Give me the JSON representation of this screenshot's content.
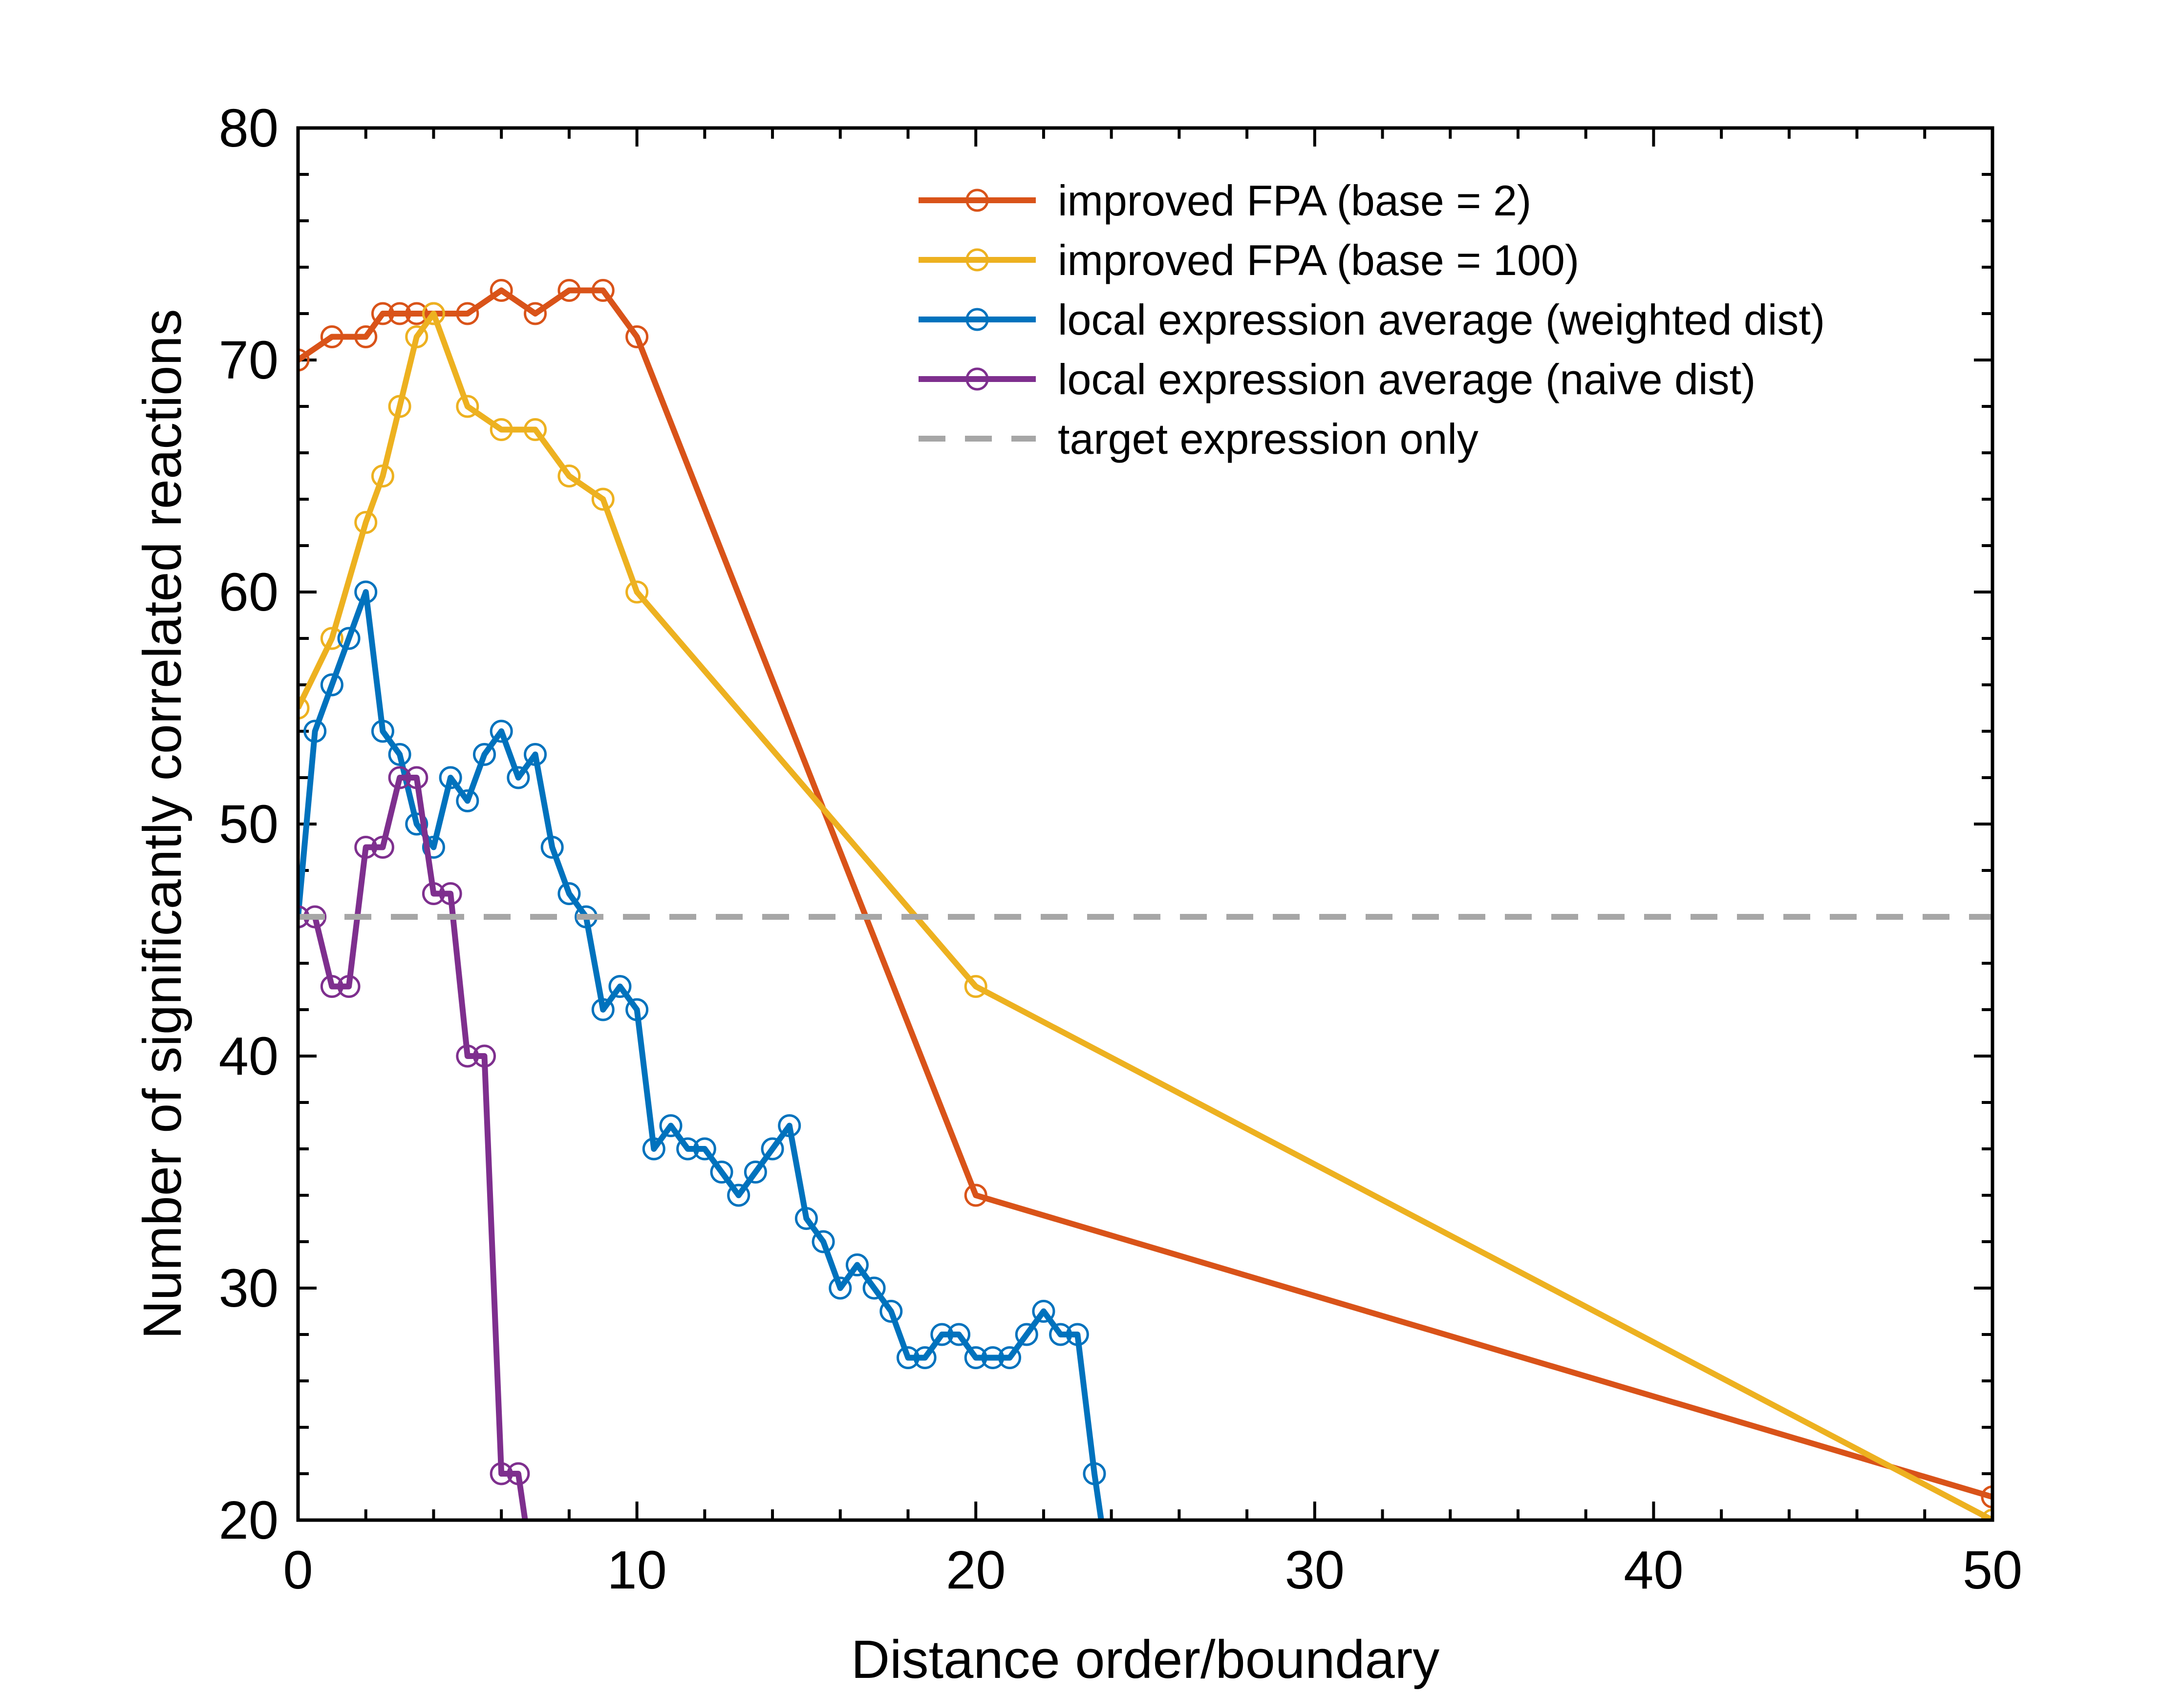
{
  "chart_data": {
    "type": "line",
    "xlabel": "Distance order/boundary",
    "ylabel": "Number of significantly correlated reactions",
    "xlim": [
      0,
      50
    ],
    "ylim": [
      20,
      80
    ],
    "x_scale": "piecewise-linear: 0-20 spans 10 units per major tick, 20-50 compressed",
    "xticks": [
      0,
      10,
      20,
      30,
      40,
      50
    ],
    "xtick_labels": [
      "0",
      "10",
      "20",
      "30",
      "40",
      "50"
    ],
    "yticks": [
      20,
      30,
      40,
      50,
      60,
      70,
      80
    ],
    "ytick_labels": [
      "20",
      "30",
      "40",
      "50",
      "60",
      "70",
      "80"
    ],
    "grid": false,
    "legend_position": "top-right",
    "series": [
      {
        "name": "improved FPA (base = 2)",
        "color": "#D95319",
        "marker": "circle",
        "x": [
          0,
          1,
          2,
          2.5,
          3,
          3.5,
          4,
          5,
          6,
          7,
          8,
          9,
          10,
          20,
          50
        ],
        "y": [
          70,
          71,
          71,
          72,
          72,
          72,
          72,
          72,
          73,
          72,
          73,
          73,
          71,
          34,
          21
        ]
      },
      {
        "name": "improved FPA (base = 100)",
        "color": "#EDB120",
        "marker": "circle",
        "x": [
          0,
          1,
          2,
          2.5,
          3,
          3.5,
          4,
          5,
          6,
          7,
          8,
          9,
          10,
          20,
          50
        ],
        "y": [
          55,
          58,
          63,
          65,
          68,
          71,
          72,
          68,
          67,
          67,
          65,
          64,
          60,
          43,
          20
        ]
      },
      {
        "name": "local expression average (weighted dist)",
        "color": "#0072BD",
        "marker": "circle",
        "x": [
          0,
          0.5,
          1,
          1.5,
          2,
          2.5,
          3,
          3.5,
          4,
          4.5,
          5,
          5.5,
          6,
          6.5,
          7,
          7.5,
          8,
          8.5,
          9,
          9.5,
          10,
          10.5,
          11,
          11.5,
          12,
          12.5,
          13,
          13.5,
          14,
          14.5,
          15,
          15.5,
          16,
          16.5,
          17,
          17.5,
          18,
          18.5,
          19,
          19.5,
          20,
          20.5,
          21,
          21.5,
          22,
          22.5,
          23,
          23.5,
          23.7
        ],
        "y": [
          46,
          54,
          56,
          58,
          60,
          54,
          53,
          50,
          49,
          52,
          51,
          53,
          54,
          52,
          53,
          49,
          47,
          46,
          42,
          43,
          42,
          36,
          37,
          36,
          36,
          35,
          34,
          35,
          36,
          37,
          33,
          32,
          30,
          31,
          30,
          29,
          27,
          27,
          28,
          28,
          27,
          27,
          27,
          28,
          29,
          28,
          28,
          22,
          20
        ]
      },
      {
        "name": "local expression average (naive dist)",
        "color": "#7E2F8E",
        "marker": "circle",
        "x": [
          0,
          0.5,
          1,
          1.5,
          2,
          2.5,
          3,
          3.5,
          4,
          4.5,
          5,
          5.5,
          6,
          6.5,
          6.7
        ],
        "y": [
          46,
          46,
          43,
          43,
          49,
          49,
          52,
          52,
          47,
          47,
          40,
          40,
          22,
          22,
          20
        ]
      },
      {
        "name": "target expression only",
        "color": "#A6A6A6",
        "marker": "none",
        "line_style": "dashed",
        "x": [
          0,
          50
        ],
        "y": [
          46,
          46
        ]
      }
    ]
  }
}
